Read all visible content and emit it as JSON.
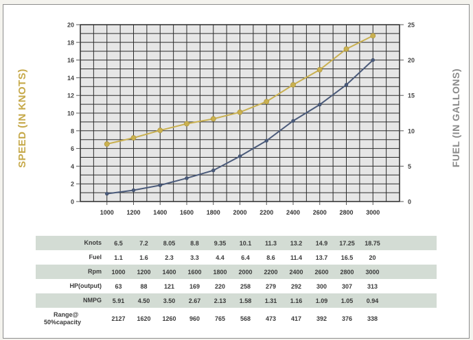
{
  "chart_data": {
    "type": "line",
    "title": "",
    "xlabel": "",
    "ylabel_left": "SPEED (IN KNOTS)",
    "ylabel_right": "FUEL (IN GALLONS)",
    "x": [
      1000,
      1200,
      1400,
      1600,
      1800,
      2000,
      2200,
      2400,
      2600,
      2800,
      3000
    ],
    "xlim": [
      800,
      3200
    ],
    "ylim_left": [
      0,
      20
    ],
    "ylim_right": [
      0,
      25
    ],
    "yticks_left": [
      0,
      2,
      4,
      6,
      8,
      10,
      12,
      14,
      16,
      18,
      20
    ],
    "yticks_right": [
      0,
      5,
      10,
      15,
      20,
      25
    ],
    "grid": true,
    "series": [
      {
        "axis": "left",
        "color": "#c9b050",
        "values": [
          6.5,
          7.2,
          8.05,
          8.8,
          9.35,
          10.1,
          11.3,
          13.2,
          14.9,
          17.25,
          18.75
        ]
      },
      {
        "axis": "right",
        "color": "#4a5a7a",
        "values": [
          1.1,
          1.6,
          2.3,
          3.3,
          4.4,
          6.4,
          8.6,
          11.4,
          13.7,
          16.5,
          20
        ]
      }
    ]
  },
  "colors": {
    "speed_label": "#c6a94a",
    "fuel_label": "#8a8a8a",
    "grid_line": "#2a2a2a",
    "plot_bg": "#e6e6e6",
    "row_shade": "#d3dcd4"
  },
  "table": {
    "rows": [
      {
        "label": "Knots",
        "shaded": true,
        "values": [
          "6.5",
          "7.2",
          "8.05",
          "8.8",
          "9.35",
          "10.1",
          "11.3",
          "13.2",
          "14.9",
          "17.25",
          "18.75"
        ]
      },
      {
        "label": "Fuel",
        "shaded": false,
        "values": [
          "1.1",
          "1.6",
          "2.3",
          "3.3",
          "4.4",
          "6.4",
          "8.6",
          "11.4",
          "13.7",
          "16.5",
          "20"
        ]
      },
      {
        "label": "Rpm",
        "shaded": true,
        "values": [
          "1000",
          "1200",
          "1400",
          "1600",
          "1800",
          "2000",
          "2200",
          "2400",
          "2600",
          "2800",
          "3000"
        ]
      },
      {
        "label": "HP(output)",
        "shaded": false,
        "values": [
          "63",
          "88",
          "121",
          "169",
          "220",
          "258",
          "279",
          "292",
          "300",
          "307",
          "313"
        ]
      },
      {
        "label": "NMPG",
        "shaded": true,
        "values": [
          "5.91",
          "4.50",
          "3.50",
          "2.67",
          "2.13",
          "1.58",
          "1.31",
          "1.16",
          "1.09",
          "1.05",
          "0.94"
        ]
      },
      {
        "label_line1": "Range@",
        "label_line2": "50%capacity",
        "shaded": false,
        "tall": true,
        "values": [
          "2127",
          "1620",
          "1260",
          "960",
          "765",
          "568",
          "473",
          "417",
          "392",
          "376",
          "338"
        ]
      }
    ]
  }
}
